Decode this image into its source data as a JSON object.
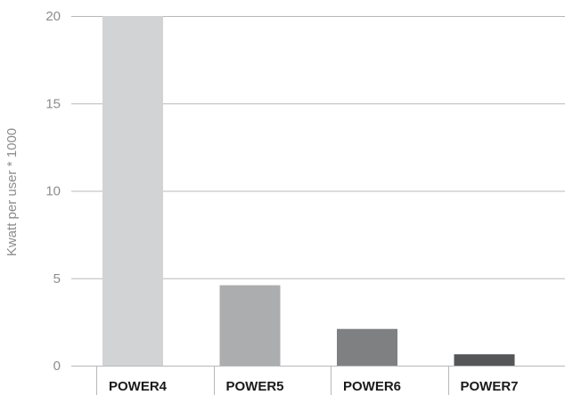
{
  "chart_data": {
    "type": "bar",
    "title": "",
    "xlabel": "",
    "ylabel": "Kwatt per user * 1000",
    "categories": [
      "POWER4",
      "POWER5",
      "POWER6",
      "POWER7"
    ],
    "values": [
      20,
      4.6,
      2.1,
      0.65
    ],
    "colors": [
      "#d2d3d5",
      "#acadaf",
      "#7f8082",
      "#555658"
    ],
    "ylim": [
      0,
      20
    ],
    "yticks": [
      0,
      5,
      10,
      15,
      20
    ],
    "ytick_labels": [
      "0",
      "5",
      "10",
      "15",
      "20"
    ],
    "grid": true,
    "legend": "none"
  }
}
